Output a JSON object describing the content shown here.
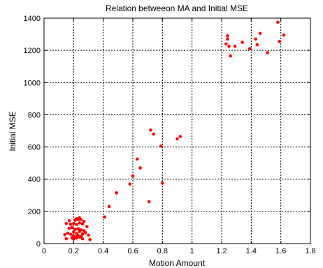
{
  "chart_data": {
    "type": "scatter",
    "title": "Relation betweeon MA and Initial MSE",
    "xlabel": "Motion Amount",
    "ylabel": "Initial MSE",
    "xlim": [
      0,
      1.8
    ],
    "ylim": [
      0,
      1400
    ],
    "xticks": [
      0,
      0.2,
      0.4,
      0.6,
      0.8,
      1,
      1.2,
      1.4,
      1.6,
      1.8
    ],
    "xtick_labels": [
      "0",
      "0.2",
      "0.4",
      "0.6",
      "0.8",
      "1",
      "1.2",
      "1.4",
      "1.6",
      "1.8"
    ],
    "yticks": [
      0,
      200,
      400,
      600,
      800,
      1000,
      1200,
      1400
    ],
    "ytick_labels": [
      "0",
      "200",
      "400",
      "600",
      "800",
      "1000",
      "1200",
      "1400"
    ],
    "grid": true,
    "grid_style": "dotted",
    "marker_color": "#ff0000",
    "x": [
      0.15,
      0.18,
      0.2,
      0.22,
      0.24,
      0.26,
      0.17,
      0.19,
      0.21,
      0.23,
      0.25,
      0.27,
      0.16,
      0.2,
      0.24,
      0.28,
      0.14,
      0.18,
      0.22,
      0.26,
      0.3,
      0.2,
      0.23,
      0.25,
      0.21,
      0.24,
      0.19,
      0.22,
      0.26,
      0.15,
      0.29,
      0.31,
      0.25,
      0.23,
      0.21,
      0.17,
      0.27,
      0.24,
      0.22,
      0.2,
      0.19,
      0.41,
      0.44,
      0.49,
      0.58,
      0.6,
      0.63,
      0.65,
      0.71,
      0.72,
      0.74,
      0.79,
      0.8,
      0.9,
      0.92,
      1.23,
      1.24,
      1.24,
      1.25,
      1.26,
      1.29,
      1.34,
      1.39,
      1.43,
      1.44,
      1.46,
      1.51,
      1.58,
      1.59,
      1.62
    ],
    "y": [
      125,
      120,
      125,
      118,
      128,
      122,
      95,
      100,
      88,
      92,
      85,
      80,
      65,
      72,
      75,
      68,
      55,
      58,
      62,
      60,
      52,
      48,
      50,
      45,
      42,
      40,
      38,
      35,
      30,
      30,
      105,
      25,
      150,
      148,
      145,
      142,
      138,
      160,
      155,
      28,
      33,
      165,
      230,
      315,
      370,
      420,
      525,
      470,
      260,
      705,
      680,
      605,
      375,
      650,
      665,
      1240,
      1270,
      1290,
      1225,
      1165,
      1225,
      1250,
      1210,
      1270,
      1235,
      1305,
      1185,
      1375,
      1255,
      1295
    ]
  }
}
